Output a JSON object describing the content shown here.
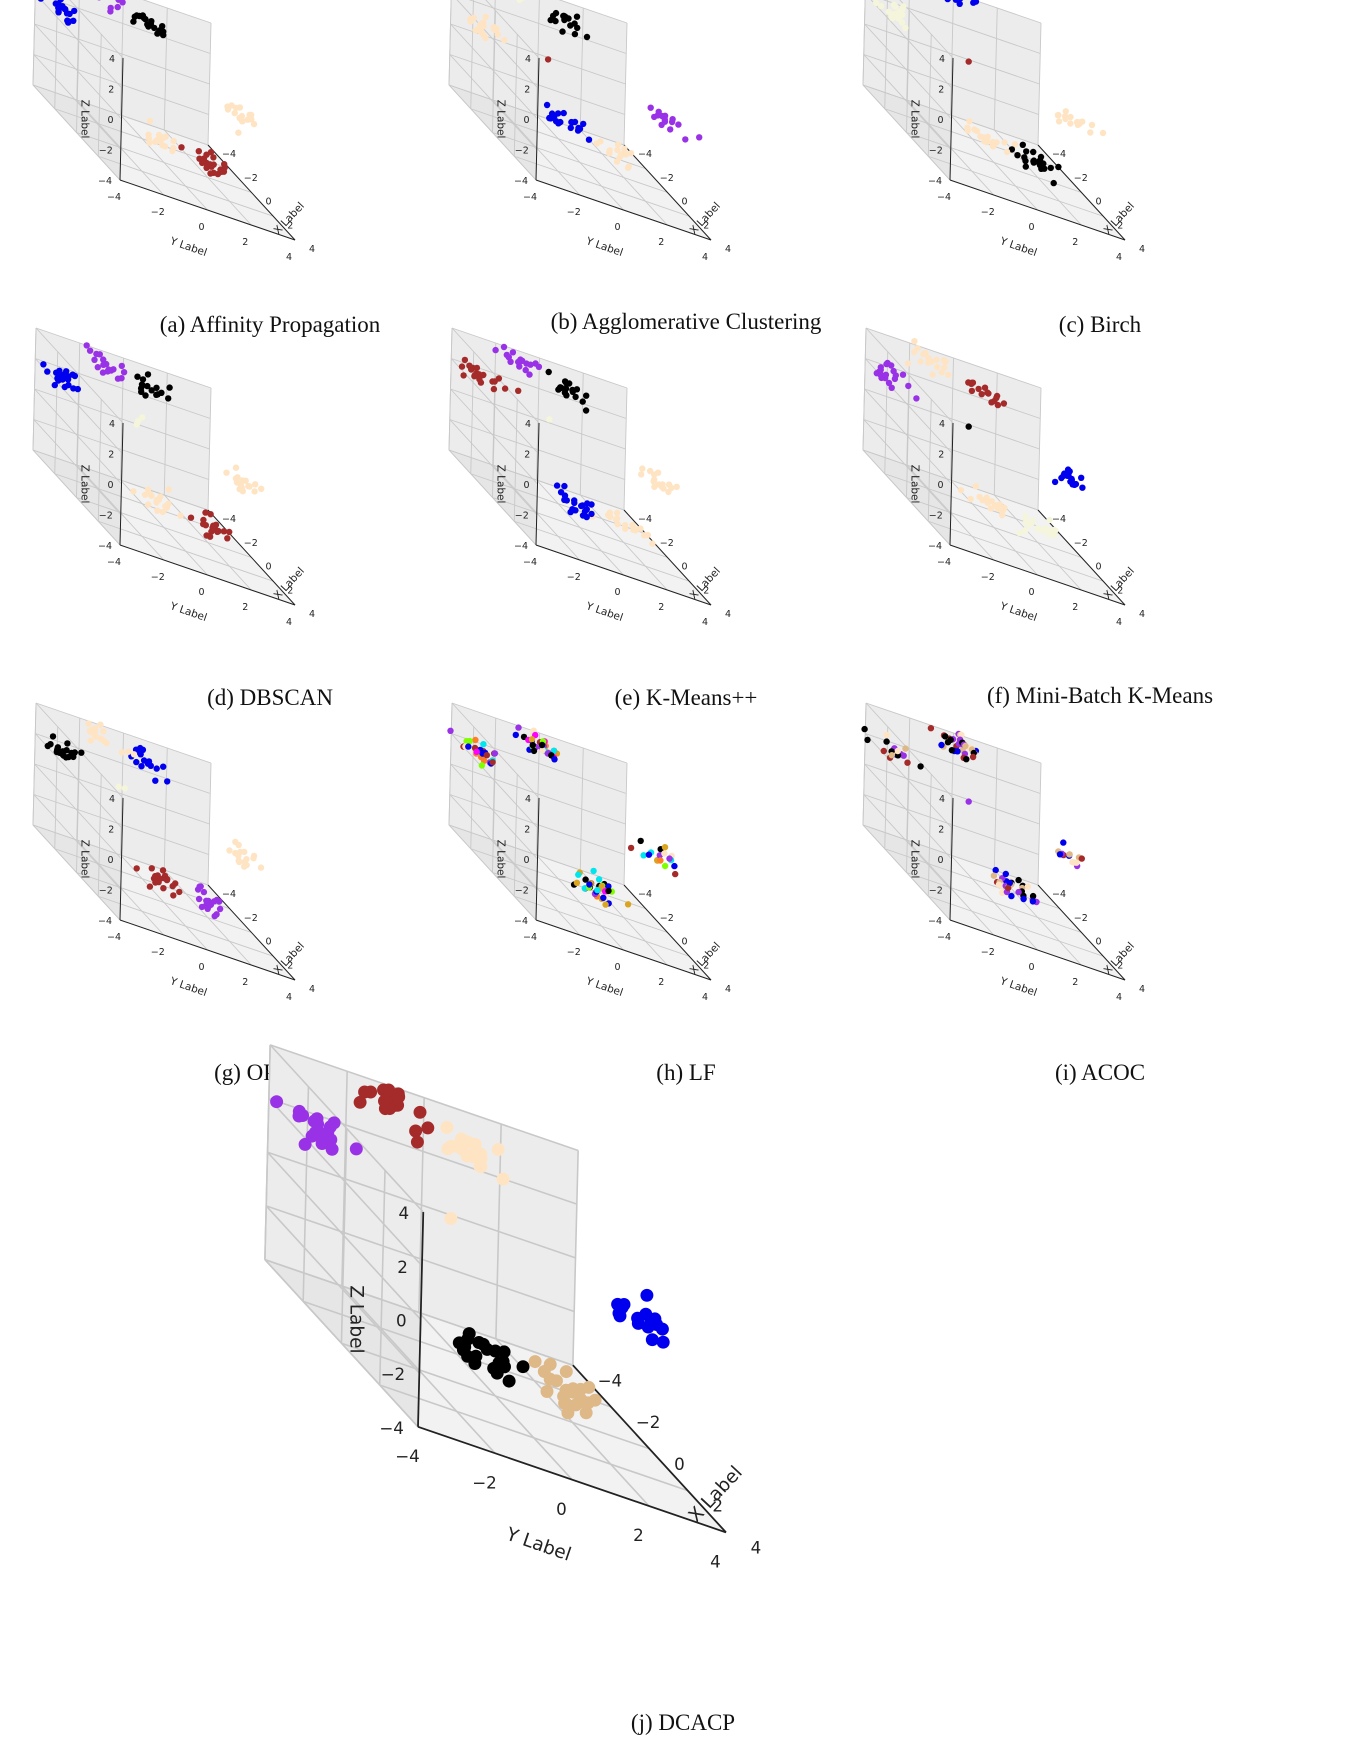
{
  "figure": {
    "panels": [
      {
        "id": "a",
        "caption": "(a) Affinity Propagation"
      },
      {
        "id": "b",
        "caption": "(b) Agglomerative Clustering"
      },
      {
        "id": "c",
        "caption": "(c) Birch"
      },
      {
        "id": "d",
        "caption": "(d) DBSCAN"
      },
      {
        "id": "e",
        "caption": "(e) K-Means++"
      },
      {
        "id": "f",
        "caption": "(f) Mini-Batch K-Means"
      },
      {
        "id": "g",
        "caption": "(g) OPTICS"
      },
      {
        "id": "h",
        "caption": "(h) LF"
      },
      {
        "id": "i",
        "caption": "(i) ACOC"
      },
      {
        "id": "j",
        "caption": "(j) DCACP"
      }
    ]
  },
  "chart_data": [
    {
      "panel": "a",
      "type": "scatter",
      "xlabel": "X Label",
      "ylabel": "Y Label",
      "zlabel": "Z Label",
      "xlim": [
        -4,
        4
      ],
      "ylim": [
        -4,
        4
      ],
      "zlim": [
        -4,
        4
      ],
      "grid": true,
      "clusters": [
        {
          "color": "#0000ee",
          "center": [
            -2.5,
            -3.5,
            2.3
          ],
          "n": 20
        },
        {
          "color": "#9932e6",
          "center": [
            -3.5,
            -1.2,
            3.5
          ],
          "n": 18
        },
        {
          "color": "#000000",
          "center": [
            -3.2,
            0.8,
            3.0
          ],
          "n": 18
        },
        {
          "color": "#ffe4c4",
          "center": [
            0.5,
            3.2,
            1.0
          ],
          "n": 16
        },
        {
          "color": "#ffe4c4",
          "center": [
            2.5,
            -1.5,
            -1.2
          ],
          "n": 18
        },
        {
          "color": "#a52a2a",
          "center": [
            2.8,
            0.6,
            -1.5
          ],
          "n": 22
        }
      ]
    },
    {
      "panel": "b",
      "type": "scatter",
      "xlabel": "X Label",
      "ylabel": "Y Label",
      "zlabel": "Z Label",
      "xlim": [
        -4,
        4
      ],
      "ylim": [
        -4,
        4
      ],
      "zlim": [
        -4,
        4
      ],
      "grid": true,
      "clusters": [
        {
          "color": "#f5f5dc",
          "center": [
            -3.8,
            -1.5,
            3.6
          ],
          "n": 18
        },
        {
          "color": "#000000",
          "center": [
            -3.5,
            1.0,
            3.1
          ],
          "n": 18
        },
        {
          "color": "#ffe4c4",
          "center": [
            -1.5,
            -3.8,
            1.8
          ],
          "n": 18
        },
        {
          "color": "#a52a2a",
          "center": [
            -1.5,
            -0.8,
            1.2
          ],
          "n": 1
        },
        {
          "color": "#9932e6",
          "center": [
            0.5,
            3.3,
            0.9
          ],
          "n": 16
        },
        {
          "color": "#0000ee",
          "center": [
            2.2,
            -1.8,
            -0.6
          ],
          "n": 20
        },
        {
          "color": "#ffe4c4",
          "center": [
            2.8,
            0.2,
            -1.0
          ],
          "n": 18
        }
      ]
    },
    {
      "panel": "c",
      "type": "scatter",
      "xlabel": "X Label",
      "ylabel": "Y Label",
      "zlabel": "Z Label",
      "xlim": [
        -4,
        4
      ],
      "ylim": [
        -4,
        4
      ],
      "zlim": [
        -4,
        4
      ],
      "grid": true,
      "clusters": [
        {
          "color": "#0000ee",
          "center": [
            -4.2,
            0.0,
            3.8
          ],
          "n": 24
        },
        {
          "color": "#f5f5dc",
          "center": [
            -2.5,
            -3.5,
            2.2
          ],
          "n": 18
        },
        {
          "color": "#a52a2a",
          "center": [
            -1.5,
            -0.5,
            1.2
          ],
          "n": 1
        },
        {
          "color": "#ffe4c4",
          "center": [
            0.5,
            3.3,
            0.9
          ],
          "n": 16
        },
        {
          "color": "#ffe4c4",
          "center": [
            2.5,
            -1.5,
            -1.2
          ],
          "n": 18
        },
        {
          "color": "#000000",
          "center": [
            2.8,
            0.5,
            -1.5
          ],
          "n": 22
        }
      ]
    },
    {
      "panel": "d",
      "type": "scatter",
      "xlabel": "X Label",
      "ylabel": "Y Label",
      "zlabel": "Z Label",
      "xlim": [
        -4,
        4
      ],
      "ylim": [
        -4,
        4
      ],
      "zlim": [
        -4,
        4
      ],
      "grid": true,
      "clusters": [
        {
          "color": "#0000ee",
          "center": [
            -2.5,
            -3.5,
            2.3
          ],
          "n": 20
        },
        {
          "color": "#9932e6",
          "center": [
            -3.5,
            -1.2,
            3.5
          ],
          "n": 18
        },
        {
          "color": "#000000",
          "center": [
            -3.2,
            0.8,
            3.0
          ],
          "n": 16
        },
        {
          "color": "#f5f5dc",
          "center": [
            -1.8,
            -0.6,
            1.4
          ],
          "n": 3
        },
        {
          "color": "#ffe4c4",
          "center": [
            0.5,
            3.2,
            1.0
          ],
          "n": 16
        },
        {
          "color": "#ffe4c4",
          "center": [
            2.5,
            -1.5,
            -1.2
          ],
          "n": 18
        },
        {
          "color": "#a52a2a",
          "center": [
            2.8,
            0.6,
            -1.5
          ],
          "n": 20
        }
      ]
    },
    {
      "panel": "e",
      "type": "scatter",
      "xlabel": "X Label",
      "ylabel": "Y Label",
      "zlabel": "Z Label",
      "xlim": [
        -4,
        4
      ],
      "ylim": [
        -4,
        4
      ],
      "zlim": [
        -4,
        4
      ],
      "grid": true,
      "clusters": [
        {
          "color": "#a52a2a",
          "center": [
            -2.5,
            -3.5,
            2.3
          ],
          "n": 20
        },
        {
          "color": "#9932e6",
          "center": [
            -3.5,
            -1.2,
            3.5
          ],
          "n": 18
        },
        {
          "color": "#000000",
          "center": [
            -3.2,
            0.8,
            3.0
          ],
          "n": 18
        },
        {
          "color": "#f5f5dc",
          "center": [
            -1.8,
            -0.6,
            1.4
          ],
          "n": 1
        },
        {
          "color": "#ffe4c4",
          "center": [
            0.5,
            3.2,
            1.0
          ],
          "n": 16
        },
        {
          "color": "#0000ee",
          "center": [
            2.5,
            -1.5,
            -1.2
          ],
          "n": 20
        },
        {
          "color": "#ffe4c4",
          "center": [
            2.8,
            0.6,
            -1.5
          ],
          "n": 18
        }
      ]
    },
    {
      "panel": "f",
      "type": "scatter",
      "xlabel": "X Label",
      "ylabel": "Y Label",
      "zlabel": "Z Label",
      "xlim": [
        -4,
        4
      ],
      "ylim": [
        -4,
        4
      ],
      "zlim": [
        -4,
        4
      ],
      "grid": true,
      "clusters": [
        {
          "color": "#9932e6",
          "center": [
            -2.5,
            -3.5,
            2.3
          ],
          "n": 20
        },
        {
          "color": "#ffe4c4",
          "center": [
            -3.5,
            -1.2,
            3.5
          ],
          "n": 18
        },
        {
          "color": "#a52a2a",
          "center": [
            -3.2,
            0.8,
            3.0
          ],
          "n": 16
        },
        {
          "color": "#000000",
          "center": [
            -1.5,
            -0.5,
            1.2
          ],
          "n": 1
        },
        {
          "color": "#0000ee",
          "center": [
            0.5,
            3.2,
            1.0
          ],
          "n": 16
        },
        {
          "color": "#ffe4c4",
          "center": [
            2.5,
            -1.5,
            -1.2
          ],
          "n": 18
        },
        {
          "color": "#f5f5dc",
          "center": [
            2.8,
            0.6,
            -1.5
          ],
          "n": 18
        }
      ]
    },
    {
      "panel": "g",
      "type": "scatter",
      "xlabel": "X Label",
      "ylabel": "Y Label",
      "zlabel": "Z Label",
      "xlim": [
        -4,
        4
      ],
      "ylim": [
        -4,
        4
      ],
      "zlim": [
        -4,
        4
      ],
      "grid": true,
      "clusters": [
        {
          "color": "#000000",
          "center": [
            -2.5,
            -3.5,
            2.3
          ],
          "n": 20
        },
        {
          "color": "#ffe4c4",
          "center": [
            -3.5,
            -1.2,
            3.5
          ],
          "n": 18
        },
        {
          "color": "#0000ee",
          "center": [
            -3.2,
            0.8,
            3.0
          ],
          "n": 16
        },
        {
          "color": "#f5f5dc",
          "center": [
            -1.8,
            -0.6,
            1.4
          ],
          "n": 2
        },
        {
          "color": "#ffe4c4",
          "center": [
            0.5,
            3.2,
            1.0
          ],
          "n": 16
        },
        {
          "color": "#a52a2a",
          "center": [
            2.5,
            -1.5,
            -1.2
          ],
          "n": 20
        },
        {
          "color": "#9932e6",
          "center": [
            2.8,
            0.6,
            -1.5
          ],
          "n": 18
        }
      ]
    },
    {
      "panel": "h",
      "type": "scatter",
      "xlabel": "X Label",
      "ylabel": "Y Label",
      "zlabel": "Z Label",
      "xlim": [
        -4,
        4
      ],
      "ylim": [
        -4,
        4
      ],
      "zlim": [
        -4,
        4
      ],
      "grid": true,
      "mixed_colors": [
        "#9932e6",
        "#00e5ee",
        "#7fff00",
        "#0000ee",
        "#000000",
        "#a52a2a",
        "#ffe4c4",
        "#ff7f24",
        "#ff00ff",
        "#daa520"
      ],
      "clusters": [
        {
          "center": [
            -2.5,
            -3.5,
            2.3
          ],
          "n": 28
        },
        {
          "center": [
            -3.5,
            -0.2,
            3.4
          ],
          "n": 34
        },
        {
          "center": [
            0.5,
            3.2,
            1.0
          ],
          "n": 18
        },
        {
          "center": [
            2.6,
            -0.5,
            -1.3
          ],
          "n": 36
        }
      ]
    },
    {
      "panel": "i",
      "type": "scatter",
      "xlabel": "X Label",
      "ylabel": "Y Label",
      "zlabel": "Z Label",
      "xlim": [
        -4,
        4
      ],
      "ylim": [
        -4,
        4
      ],
      "zlim": [
        -4,
        4
      ],
      "grid": true,
      "mixed_colors": [
        "#0000ee",
        "#a52a2a",
        "#000000",
        "#ffe4c4",
        "#9932e6",
        "#deb887"
      ],
      "clusters": [
        {
          "center": [
            -2.5,
            -3.5,
            2.3
          ],
          "n": 20
        },
        {
          "center": [
            -3.5,
            0.0,
            3.5
          ],
          "n": 34
        },
        {
          "center": [
            -1.5,
            -0.5,
            1.2
          ],
          "n": 1
        },
        {
          "center": [
            0.5,
            3.2,
            1.0
          ],
          "n": 14
        },
        {
          "center": [
            2.6,
            -0.5,
            -1.3
          ],
          "n": 32
        }
      ]
    },
    {
      "panel": "j",
      "type": "scatter",
      "xlabel": "X Label",
      "ylabel": "Y Label",
      "zlabel": "Z Label",
      "xlim": [
        -4,
        4
      ],
      "ylim": [
        -4,
        4
      ],
      "zlim": [
        -4,
        4
      ],
      "grid": true,
      "clusters": [
        {
          "color": "#9932e6",
          "center": [
            -2.5,
            -3.5,
            2.3
          ],
          "n": 20
        },
        {
          "color": "#a52a2a",
          "center": [
            -3.5,
            -1.2,
            3.5
          ],
          "n": 18
        },
        {
          "color": "#ffe4c4",
          "center": [
            -3.2,
            0.8,
            3.0
          ],
          "n": 18
        },
        {
          "color": "#ffe4c4",
          "center": [
            -1.5,
            -0.5,
            1.2
          ],
          "n": 1
        },
        {
          "color": "#0000ee",
          "center": [
            0.5,
            3.2,
            1.0
          ],
          "n": 16
        },
        {
          "color": "#000000",
          "center": [
            2.5,
            -1.5,
            -1.2
          ],
          "n": 20
        },
        {
          "color": "#deb887",
          "center": [
            2.8,
            0.6,
            -1.5
          ],
          "n": 22
        }
      ]
    }
  ]
}
